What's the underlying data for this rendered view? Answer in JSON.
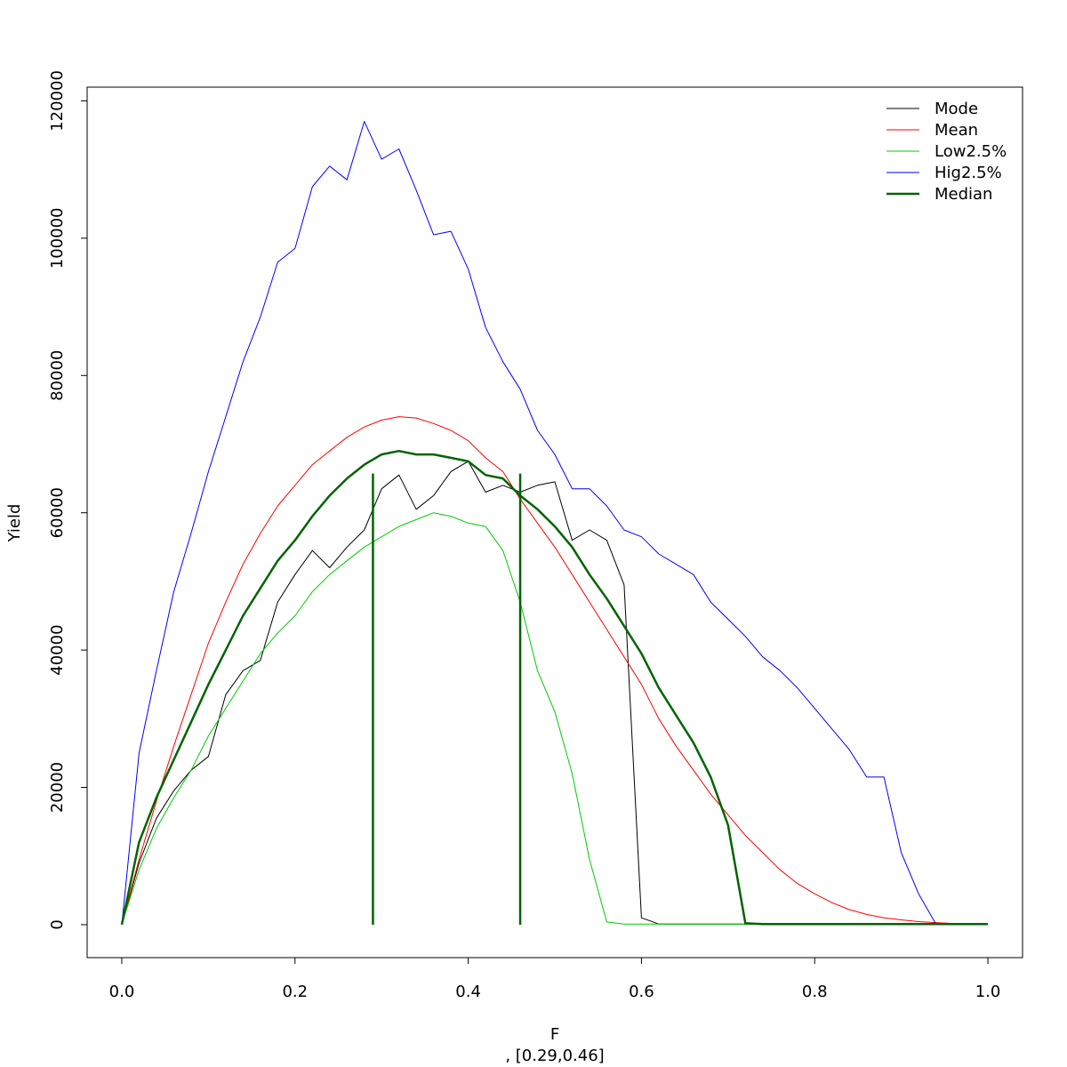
{
  "chart_data": {
    "type": "line",
    "title": "",
    "xlabel": "F",
    "subtitle": ", [0.29,0.46]",
    "ylabel": "Yield",
    "xlim": [
      -0.04,
      1.04
    ],
    "ylim": [
      -4800,
      122000
    ],
    "x_ticks": [
      0.0,
      0.2,
      0.4,
      0.6,
      0.8,
      1.0
    ],
    "x_tick_labels": [
      "0.0",
      "0.2",
      "0.4",
      "0.6",
      "0.8",
      "1.0"
    ],
    "y_ticks": [
      0,
      20000,
      40000,
      60000,
      80000,
      100000,
      120000
    ],
    "y_tick_labels": [
      "0",
      "20000",
      "40000",
      "60000",
      "80000",
      "100000",
      "120000"
    ],
    "grid": false,
    "legend_position": "top-right",
    "x": [
      0.0,
      0.02,
      0.04,
      0.06,
      0.08,
      0.1,
      0.12,
      0.14,
      0.16,
      0.18,
      0.2,
      0.22,
      0.24,
      0.26,
      0.28,
      0.3,
      0.32,
      0.34,
      0.36,
      0.38,
      0.4,
      0.42,
      0.44,
      0.46,
      0.48,
      0.5,
      0.52,
      0.54,
      0.56,
      0.58,
      0.6,
      0.62,
      0.64,
      0.66,
      0.68,
      0.7,
      0.72,
      0.74,
      0.76,
      0.78,
      0.8,
      0.82,
      0.84,
      0.86,
      0.88,
      0.9,
      0.92,
      0.94,
      0.96,
      0.98,
      1.0
    ],
    "series": [
      {
        "name": "Mode",
        "color": "#000000",
        "width": 1,
        "values": [
          0,
          9000,
          15500,
          19500,
          22500,
          24500,
          33500,
          37000,
          38500,
          47000,
          51000,
          54500,
          52000,
          55000,
          57500,
          63500,
          65500,
          60500,
          62500,
          66000,
          67500,
          63000,
          64000,
          63000,
          64000,
          64500,
          56000,
          57500,
          56000,
          49500,
          1000,
          100,
          100,
          100,
          100,
          100,
          100,
          100,
          100,
          100,
          100,
          100,
          100,
          100,
          100,
          100,
          100,
          100,
          100,
          100,
          100
        ]
      },
      {
        "name": "Mean",
        "color": "#ff0000",
        "width": 1,
        "values": [
          0,
          9500,
          18000,
          26000,
          33500,
          41000,
          47000,
          52500,
          57000,
          61000,
          64000,
          67000,
          69000,
          71000,
          72500,
          73500,
          74000,
          73800,
          73000,
          72000,
          70500,
          68000,
          66000,
          62000,
          58500,
          55000,
          51000,
          47000,
          43000,
          39000,
          35000,
          30000,
          26000,
          22500,
          19000,
          16000,
          13000,
          10500,
          8000,
          6000,
          4500,
          3200,
          2200,
          1500,
          1000,
          700,
          450,
          300,
          180,
          100,
          50
        ]
      },
      {
        "name": "Low2.5%",
        "color": "#00cc00",
        "width": 1,
        "values": [
          0,
          8000,
          14000,
          18500,
          22500,
          27500,
          31500,
          35500,
          39500,
          42500,
          45000,
          48500,
          51000,
          53000,
          55000,
          56500,
          58000,
          59000,
          60000,
          59500,
          58500,
          58000,
          54500,
          47000,
          37000,
          31000,
          22000,
          9500,
          400,
          100,
          100,
          100,
          100,
          100,
          100,
          100,
          100,
          100,
          100,
          100,
          100,
          100,
          100,
          100,
          100,
          100,
          100,
          100,
          100,
          100,
          100
        ]
      },
      {
        "name": "Hig2.5%",
        "color": "#0000ff",
        "width": 1,
        "values": [
          0,
          25000,
          37000,
          48500,
          57000,
          66000,
          74000,
          82000,
          88500,
          96500,
          98500,
          107500,
          110500,
          108500,
          117000,
          111500,
          113000,
          107000,
          100500,
          101000,
          95500,
          87000,
          82000,
          78000,
          72000,
          68500,
          63500,
          63500,
          61000,
          57500,
          56500,
          54000,
          52500,
          51000,
          47000,
          44500,
          42000,
          39000,
          37000,
          34500,
          31500,
          28500,
          25500,
          21500,
          21500,
          10500,
          4500,
          100,
          100,
          100,
          100
        ]
      },
      {
        "name": "Median",
        "color": "#006400",
        "width": 2.5,
        "values": [
          0,
          12000,
          18500,
          24000,
          29500,
          35000,
          40000,
          45000,
          49000,
          53000,
          56000,
          59500,
          62500,
          65000,
          67000,
          68500,
          69000,
          68500,
          68500,
          68000,
          67500,
          65500,
          65000,
          62500,
          60500,
          58000,
          55000,
          51000,
          47500,
          43500,
          39500,
          34500,
          30500,
          26500,
          21500,
          14500,
          200,
          100,
          100,
          100,
          100,
          100,
          100,
          100,
          100,
          100,
          100,
          100,
          100,
          100,
          100
        ]
      }
    ],
    "vertical_lines": [
      {
        "x": 0.29,
        "y_top": 65700,
        "color": "#006400"
      },
      {
        "x": 0.46,
        "y_top": 65700,
        "color": "#006400"
      }
    ]
  }
}
